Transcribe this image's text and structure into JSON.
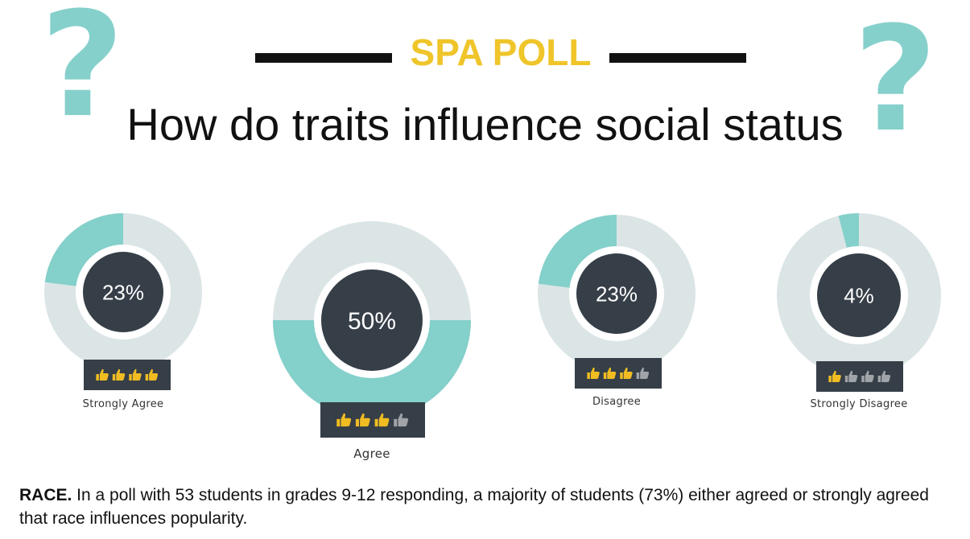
{
  "header": {
    "poll_label": "SPA POLL",
    "title": "How do traits influence social status",
    "question_mark": "?"
  },
  "chart_data": [
    {
      "type": "pie",
      "category": "Strongly Agree",
      "value": 23,
      "label": "23%",
      "thumbs_up_filled": 4,
      "thumbs_total": 4
    },
    {
      "type": "pie",
      "category": "Agree",
      "value": 50,
      "label": "50%",
      "thumbs_up_filled": 3,
      "thumbs_total": 4
    },
    {
      "type": "pie",
      "category": "Disagree",
      "value": 23,
      "label": "23%",
      "thumbs_up_filled": 3,
      "thumbs_total": 4
    },
    {
      "type": "pie",
      "category": "Strongly Disagree",
      "value": 4,
      "label": "4%",
      "thumbs_up_filled": 1,
      "thumbs_total": 4
    }
  ],
  "caption": {
    "lead": "RACE.",
    "text": " In a poll with 53 students in grades 9-12 responding, a majority of students (73%) either agreed or strongly agreed that race influences popularity."
  },
  "colors": {
    "accent_teal": "#84d0cb",
    "ring_gray": "#dce5e6",
    "center_dark": "#363f48",
    "title_yellow": "#efc52a",
    "thumb_gold": "#f0bc22",
    "thumb_gray": "#a0a4a8"
  }
}
